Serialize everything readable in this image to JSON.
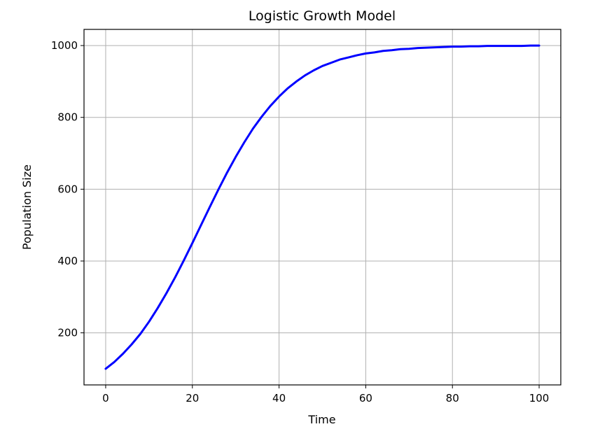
{
  "chart_data": {
    "type": "line",
    "title": "Logistic Growth Model",
    "xlabel": "Time",
    "ylabel": "Population Size",
    "xlim": [
      -5,
      105
    ],
    "ylim": [
      55,
      1045
    ],
    "xticks": [
      0,
      20,
      40,
      60,
      80,
      100
    ],
    "yticks": [
      200,
      400,
      600,
      800,
      1000
    ],
    "grid": true,
    "series": [
      {
        "color": "#0000ff",
        "x": [
          0,
          2,
          4,
          6,
          8,
          10,
          12,
          14,
          16,
          18,
          20,
          22,
          24,
          26,
          28,
          30,
          32,
          34,
          36,
          38,
          40,
          42,
          44,
          46,
          48,
          50,
          52,
          54,
          56,
          58,
          60,
          62,
          64,
          66,
          68,
          70,
          72,
          74,
          76,
          78,
          80,
          82,
          84,
          86,
          88,
          90,
          92,
          94,
          96,
          98,
          100
        ],
        "y": [
          100,
          119,
          142,
          168,
          197,
          231,
          269,
          310,
          354,
          401,
          450,
          500,
          550,
          599,
          646,
          690,
          731,
          769,
          802,
          832,
          858,
          881,
          900,
          917,
          931,
          943,
          952,
          961,
          967,
          973,
          978,
          981,
          985,
          987,
          990,
          991,
          993,
          994,
          995,
          996,
          997,
          997,
          998,
          998,
          999,
          999,
          999,
          999,
          999,
          1000,
          1000
        ]
      }
    ]
  }
}
